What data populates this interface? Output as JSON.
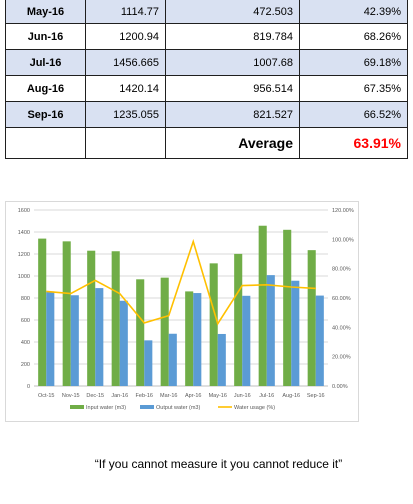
{
  "table": {
    "rows": [
      {
        "month": "May-16",
        "input": "1114.77",
        "output": "472.503",
        "usage": "42.39%"
      },
      {
        "month": "Jun-16",
        "input": "1200.94",
        "output": "819.784",
        "usage": "68.26%"
      },
      {
        "month": "Jul-16",
        "input": "1456.665",
        "output": "1007.68",
        "usage": "69.18%"
      },
      {
        "month": "Aug-16",
        "input": "1420.14",
        "output": "956.514",
        "usage": "67.35%"
      },
      {
        "month": "Sep-16",
        "input": "1235.055",
        "output": "821.527",
        "usage": "66.52%"
      }
    ],
    "average_label": "Average",
    "average_value": "63.91%"
  },
  "colors": {
    "row_band": "#d9e1f2",
    "input_bar": "#70ad47",
    "output_bar": "#5b9bd5",
    "usage_line": "#ffc000",
    "average_value": "#ff0000"
  },
  "chart_data": {
    "type": "bar",
    "categories": [
      "Oct-15",
      "Nov-15",
      "Dec-15",
      "Jan-16",
      "Feb-16",
      "Mar-16",
      "Apr-16",
      "May-16",
      "Jun-16",
      "Jul-16",
      "Aug-16",
      "Sep-16"
    ],
    "series": [
      {
        "name": "Input water (m3)",
        "kind": "bar",
        "axis": "left",
        "values": [
          1340,
          1315,
          1230,
          1225,
          970,
          985,
          860,
          1115,
          1201,
          1457,
          1420,
          1235
        ]
      },
      {
        "name": "Output water (m3)",
        "kind": "bar",
        "axis": "left",
        "values": [
          860,
          825,
          890,
          775,
          415,
          475,
          845,
          473,
          820,
          1008,
          957,
          822
        ]
      },
      {
        "name": "Water usage (%)",
        "kind": "line",
        "axis": "right",
        "values": [
          64.5,
          63,
          72,
          63,
          43,
          48,
          98.5,
          42.5,
          68.5,
          69,
          67.5,
          66.5
        ]
      }
    ],
    "ylim": [
      0,
      1600
    ],
    "yticks": [
      "0",
      "200",
      "400",
      "600",
      "800",
      "1000",
      "1200",
      "1400",
      "1600"
    ],
    "y2lim": [
      0,
      120
    ],
    "y2ticks": [
      "0.00%",
      "20.00%",
      "40.00%",
      "60.00%",
      "80.00%",
      "100.00%",
      "120.00%"
    ],
    "grid": true,
    "legend": "bottom"
  },
  "quote": "“If you cannot measure it you cannot reduce it”"
}
